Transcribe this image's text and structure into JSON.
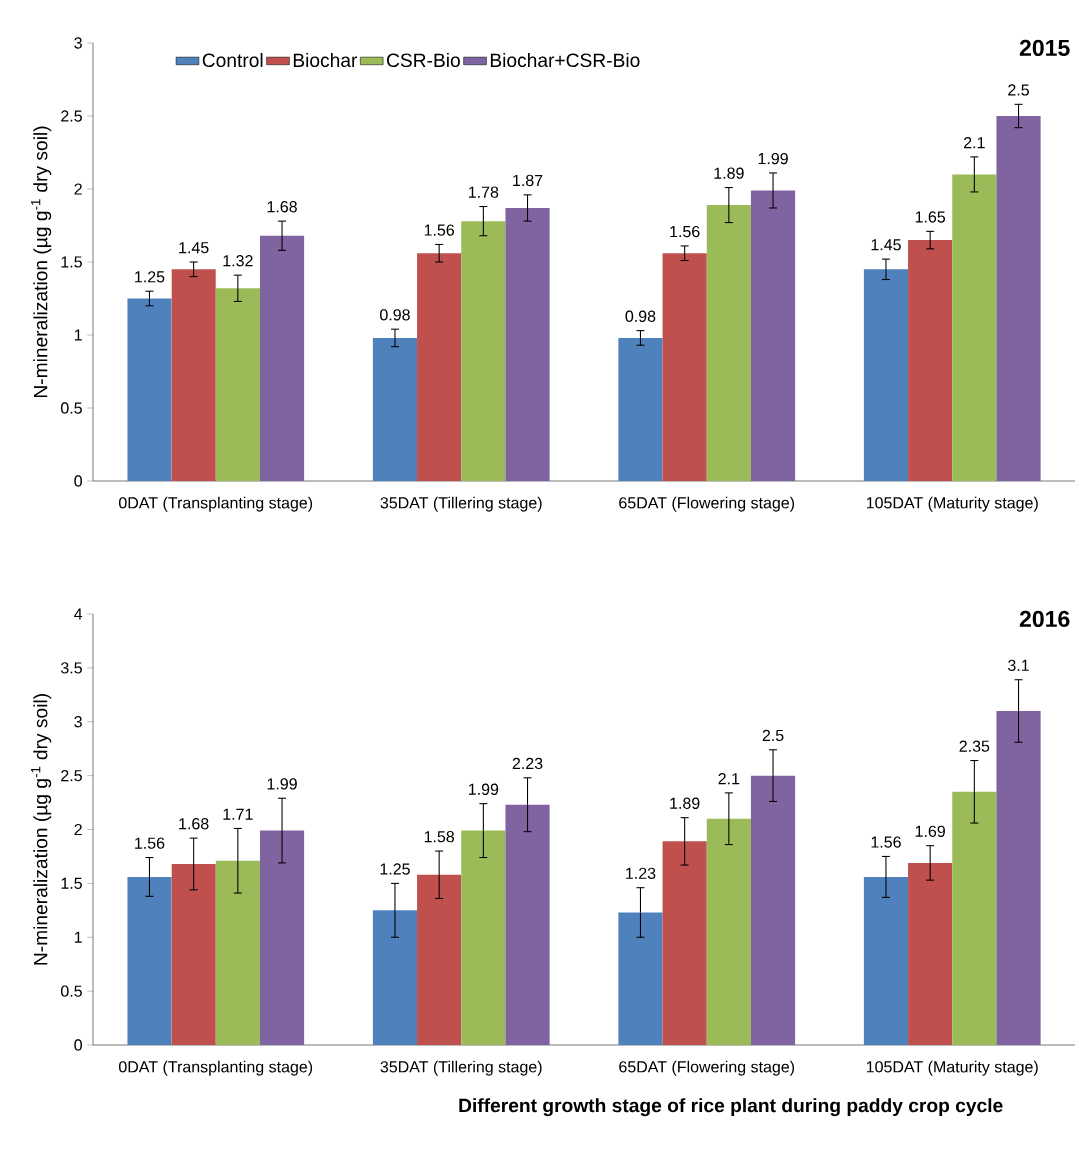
{
  "chart_data": [
    {
      "type": "bar",
      "title": "2015",
      "ylabel": "N-mineralization (µg g$^{-1}$ dry soil)",
      "categories": [
        "0DAT (Transplanting stage)",
        "35DAT (Tillering stage)",
        "65DAT (Flowering stage)",
        "105DAT (Maturity stage)"
      ],
      "series": [
        {
          "name": "Control",
          "color": "#4f81bd",
          "values": [
            1.25,
            0.98,
            0.98,
            1.45
          ],
          "errors": [
            0.05,
            0.06,
            0.05,
            0.07
          ]
        },
        {
          "name": "Biochar",
          "color": "#c0504d",
          "values": [
            1.45,
            1.56,
            1.56,
            1.65
          ],
          "errors": [
            0.05,
            0.06,
            0.05,
            0.06
          ]
        },
        {
          "name": "CSR-Bio",
          "color": "#9bbb59",
          "values": [
            1.32,
            1.78,
            1.89,
            2.1
          ],
          "errors": [
            0.09,
            0.1,
            0.12,
            0.12
          ]
        },
        {
          "name": "Biochar+CSR-Bio",
          "color": "#8064a2",
          "values": [
            1.68,
            1.87,
            1.99,
            2.5
          ],
          "errors": [
            0.1,
            0.09,
            0.12,
            0.08
          ]
        }
      ],
      "ylim": [
        0,
        3
      ],
      "yticks": [
        0,
        0.5,
        1,
        1.5,
        2,
        2.5,
        3
      ],
      "data_labels": true,
      "legend": "top",
      "grid": false
    },
    {
      "type": "bar",
      "title": "2016",
      "xlabel": "Different growth stage of rice plant during paddy crop cycle",
      "ylabel": "N-mineralization (µg g$^{-1}$ dry soil)",
      "categories": [
        "0DAT (Transplanting stage)",
        "35DAT (Tillering stage)",
        "65DAT (Flowering stage)",
        "105DAT (Maturity stage)"
      ],
      "series": [
        {
          "color": "#4f81bd",
          "values": [
            1.56,
            1.25,
            1.23,
            1.56
          ],
          "errors": [
            0.18,
            0.25,
            0.23,
            0.19
          ]
        },
        {
          "color": "#c0504d",
          "values": [
            1.68,
            1.58,
            1.89,
            1.69
          ],
          "errors": [
            0.24,
            0.22,
            0.22,
            0.16
          ]
        },
        {
          "color": "#9bbb59",
          "values": [
            1.71,
            1.99,
            2.1,
            2.35
          ],
          "errors": [
            0.3,
            0.25,
            0.24,
            0.29
          ]
        },
        {
          "color": "#8064a2",
          "values": [
            1.99,
            2.23,
            2.5,
            3.1
          ],
          "errors": [
            0.3,
            0.25,
            0.24,
            0.29
          ]
        }
      ],
      "ylim": [
        0,
        4
      ],
      "yticks": [
        0,
        0.5,
        1,
        1.5,
        2,
        2.5,
        3,
        3.5,
        4
      ],
      "data_labels": true,
      "legend": false,
      "grid": false
    }
  ]
}
